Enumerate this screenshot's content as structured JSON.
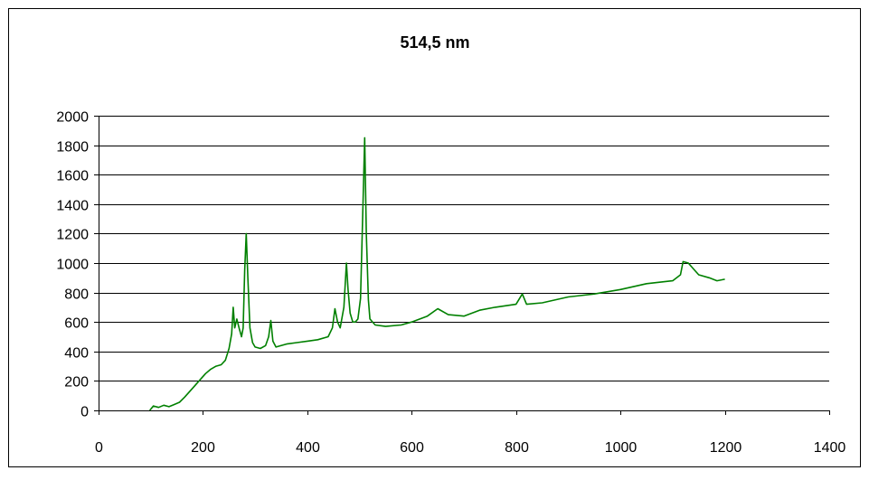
{
  "chart_data": {
    "type": "line",
    "title": "514,5 nm",
    "xlabel": "",
    "ylabel": "",
    "xlim": [
      0,
      1400
    ],
    "ylim": [
      0,
      2000
    ],
    "x_ticks": [
      0,
      200,
      400,
      600,
      800,
      1000,
      1200,
      1400
    ],
    "y_ticks": [
      0,
      200,
      400,
      600,
      800,
      1000,
      1200,
      1400,
      1600,
      1800,
      2000
    ],
    "grid": "horizontal",
    "legend": "none",
    "series": [
      {
        "color": "#008000",
        "points": [
          [
            98,
            0
          ],
          [
            105,
            30
          ],
          [
            115,
            20
          ],
          [
            125,
            35
          ],
          [
            135,
            25
          ],
          [
            145,
            40
          ],
          [
            155,
            55
          ],
          [
            165,
            90
          ],
          [
            175,
            130
          ],
          [
            185,
            170
          ],
          [
            195,
            210
          ],
          [
            205,
            250
          ],
          [
            215,
            280
          ],
          [
            225,
            300
          ],
          [
            235,
            310
          ],
          [
            243,
            340
          ],
          [
            250,
            420
          ],
          [
            255,
            520
          ],
          [
            258,
            700
          ],
          [
            261,
            560
          ],
          [
            265,
            620
          ],
          [
            270,
            550
          ],
          [
            274,
            500
          ],
          [
            277,
            560
          ],
          [
            280,
            950
          ],
          [
            283,
            1200
          ],
          [
            286,
            900
          ],
          [
            290,
            560
          ],
          [
            295,
            460
          ],
          [
            300,
            430
          ],
          [
            310,
            420
          ],
          [
            320,
            440
          ],
          [
            326,
            500
          ],
          [
            330,
            610
          ],
          [
            334,
            470
          ],
          [
            340,
            430
          ],
          [
            360,
            450
          ],
          [
            380,
            460
          ],
          [
            400,
            470
          ],
          [
            420,
            480
          ],
          [
            440,
            500
          ],
          [
            448,
            560
          ],
          [
            453,
            690
          ],
          [
            458,
            600
          ],
          [
            463,
            560
          ],
          [
            470,
            700
          ],
          [
            475,
            1000
          ],
          [
            478,
            820
          ],
          [
            482,
            660
          ],
          [
            487,
            600
          ],
          [
            492,
            600
          ],
          [
            497,
            620
          ],
          [
            502,
            760
          ],
          [
            506,
            1300
          ],
          [
            510,
            1850
          ],
          [
            513,
            1200
          ],
          [
            517,
            750
          ],
          [
            520,
            620
          ],
          [
            530,
            580
          ],
          [
            550,
            570
          ],
          [
            580,
            580
          ],
          [
            600,
            600
          ],
          [
            630,
            640
          ],
          [
            650,
            690
          ],
          [
            670,
            650
          ],
          [
            700,
            640
          ],
          [
            730,
            680
          ],
          [
            760,
            700
          ],
          [
            800,
            720
          ],
          [
            812,
            790
          ],
          [
            820,
            720
          ],
          [
            850,
            730
          ],
          [
            900,
            770
          ],
          [
            950,
            790
          ],
          [
            1000,
            820
          ],
          [
            1050,
            860
          ],
          [
            1100,
            880
          ],
          [
            1115,
            920
          ],
          [
            1120,
            1010
          ],
          [
            1130,
            1000
          ],
          [
            1140,
            960
          ],
          [
            1150,
            920
          ],
          [
            1170,
            900
          ],
          [
            1185,
            880
          ],
          [
            1200,
            890
          ]
        ]
      }
    ]
  }
}
